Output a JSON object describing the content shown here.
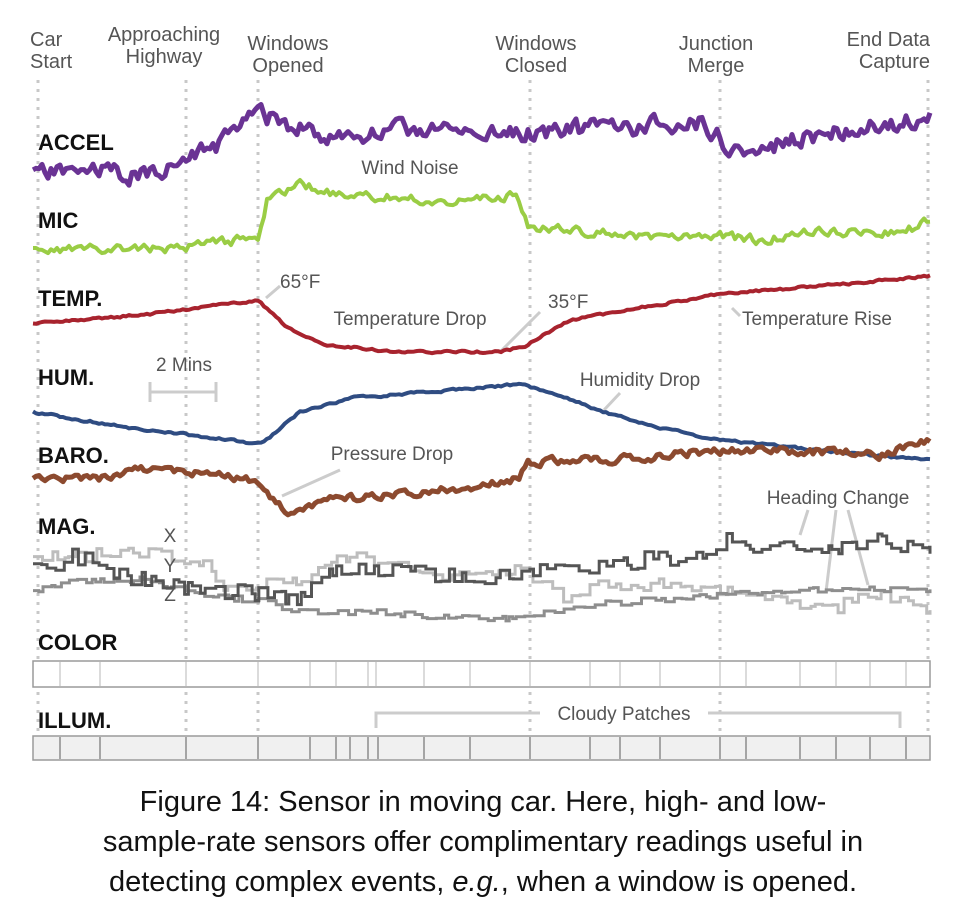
{
  "chart_data": {
    "type": "line",
    "events": [
      "Car Start",
      "Approaching Highway",
      "Windows Opened",
      "Windows Closed",
      "Junction Merge",
      "End Data Capture"
    ],
    "rows": [
      "ACCEL",
      "MIC",
      "TEMP.",
      "HUM.",
      "BARO.",
      "MAG.",
      "COLOR",
      "ILLUM."
    ],
    "annotations": {
      "mic": "Wind Noise",
      "temp_high": "65°F",
      "temp_drop": "Temperature Drop",
      "temp_low": "35°F",
      "temp_rise": "Temperature Rise",
      "scale": "2 Mins",
      "hum": "Humidity Drop",
      "baro": "Pressure Drop",
      "heading": "Heading Change",
      "mag_x": "X",
      "mag_y": "Y",
      "mag_z": "Z",
      "cloudy": "Cloudy Patches"
    },
    "series": [
      {
        "key": "accel",
        "color": "#6a3394"
      },
      {
        "key": "mic",
        "color": "#9acd45"
      },
      {
        "key": "temp",
        "color": "#a8232e"
      },
      {
        "key": "hum",
        "color": "#2f4c82"
      },
      {
        "key": "baro",
        "color": "#8c4a2f"
      },
      {
        "key": "mag_x",
        "color": "#555555"
      },
      {
        "key": "mag_y",
        "color": "#bdbdbd"
      },
      {
        "key": "mag_z",
        "color": "#8e8e8e"
      }
    ]
  },
  "caption": {
    "line1": "Figure 14: Sensor in moving car. Here, high- and low-",
    "line2": "sample-rate sensors offer complimentary readings useful in",
    "line3_pre": "detecting complex events, ",
    "line3_em": "e.g.",
    "line3_post": ", when a window is opened."
  }
}
